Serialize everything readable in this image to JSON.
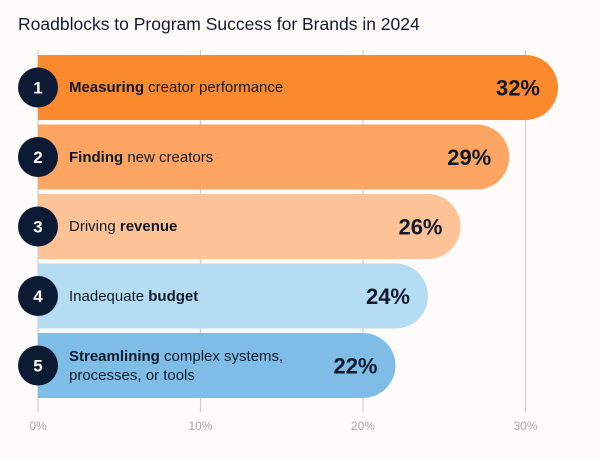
{
  "title": "Roadblocks to Program Success for Brands in 2024",
  "chart_data": {
    "type": "bar",
    "orientation": "horizontal",
    "title": "Roadblocks to Program Success for Brands in 2024",
    "xlabel": "",
    "ylabel": "",
    "xlim": [
      0,
      32
    ],
    "grid": true,
    "x_ticks": [
      "0%",
      "10%",
      "20%",
      "30%"
    ],
    "x_tick_values": [
      0,
      10,
      20,
      30
    ],
    "categories": [
      {
        "rank": "1",
        "bold": "Measuring",
        "rest": " creator performance",
        "bold_first": true
      },
      {
        "rank": "2",
        "bold": "Finding",
        "rest": " new creators",
        "bold_first": true
      },
      {
        "rank": "3",
        "bold": "revenue",
        "rest": "Driving ",
        "bold_first": false
      },
      {
        "rank": "4",
        "bold": "budget",
        "rest": "Inadequate ",
        "bold_first": false
      },
      {
        "rank": "5",
        "bold": "Streamlining",
        "rest": " complex systems, processes, or tools",
        "bold_first": true
      }
    ],
    "values": [
      32,
      29,
      26,
      24,
      22
    ],
    "value_labels": [
      "32%",
      "29%",
      "26%",
      "24%",
      "22%"
    ],
    "colors": [
      "#fb8a2f",
      "#fca462",
      "#fdc295",
      "#b4dcf2",
      "#7fbde6"
    ]
  }
}
